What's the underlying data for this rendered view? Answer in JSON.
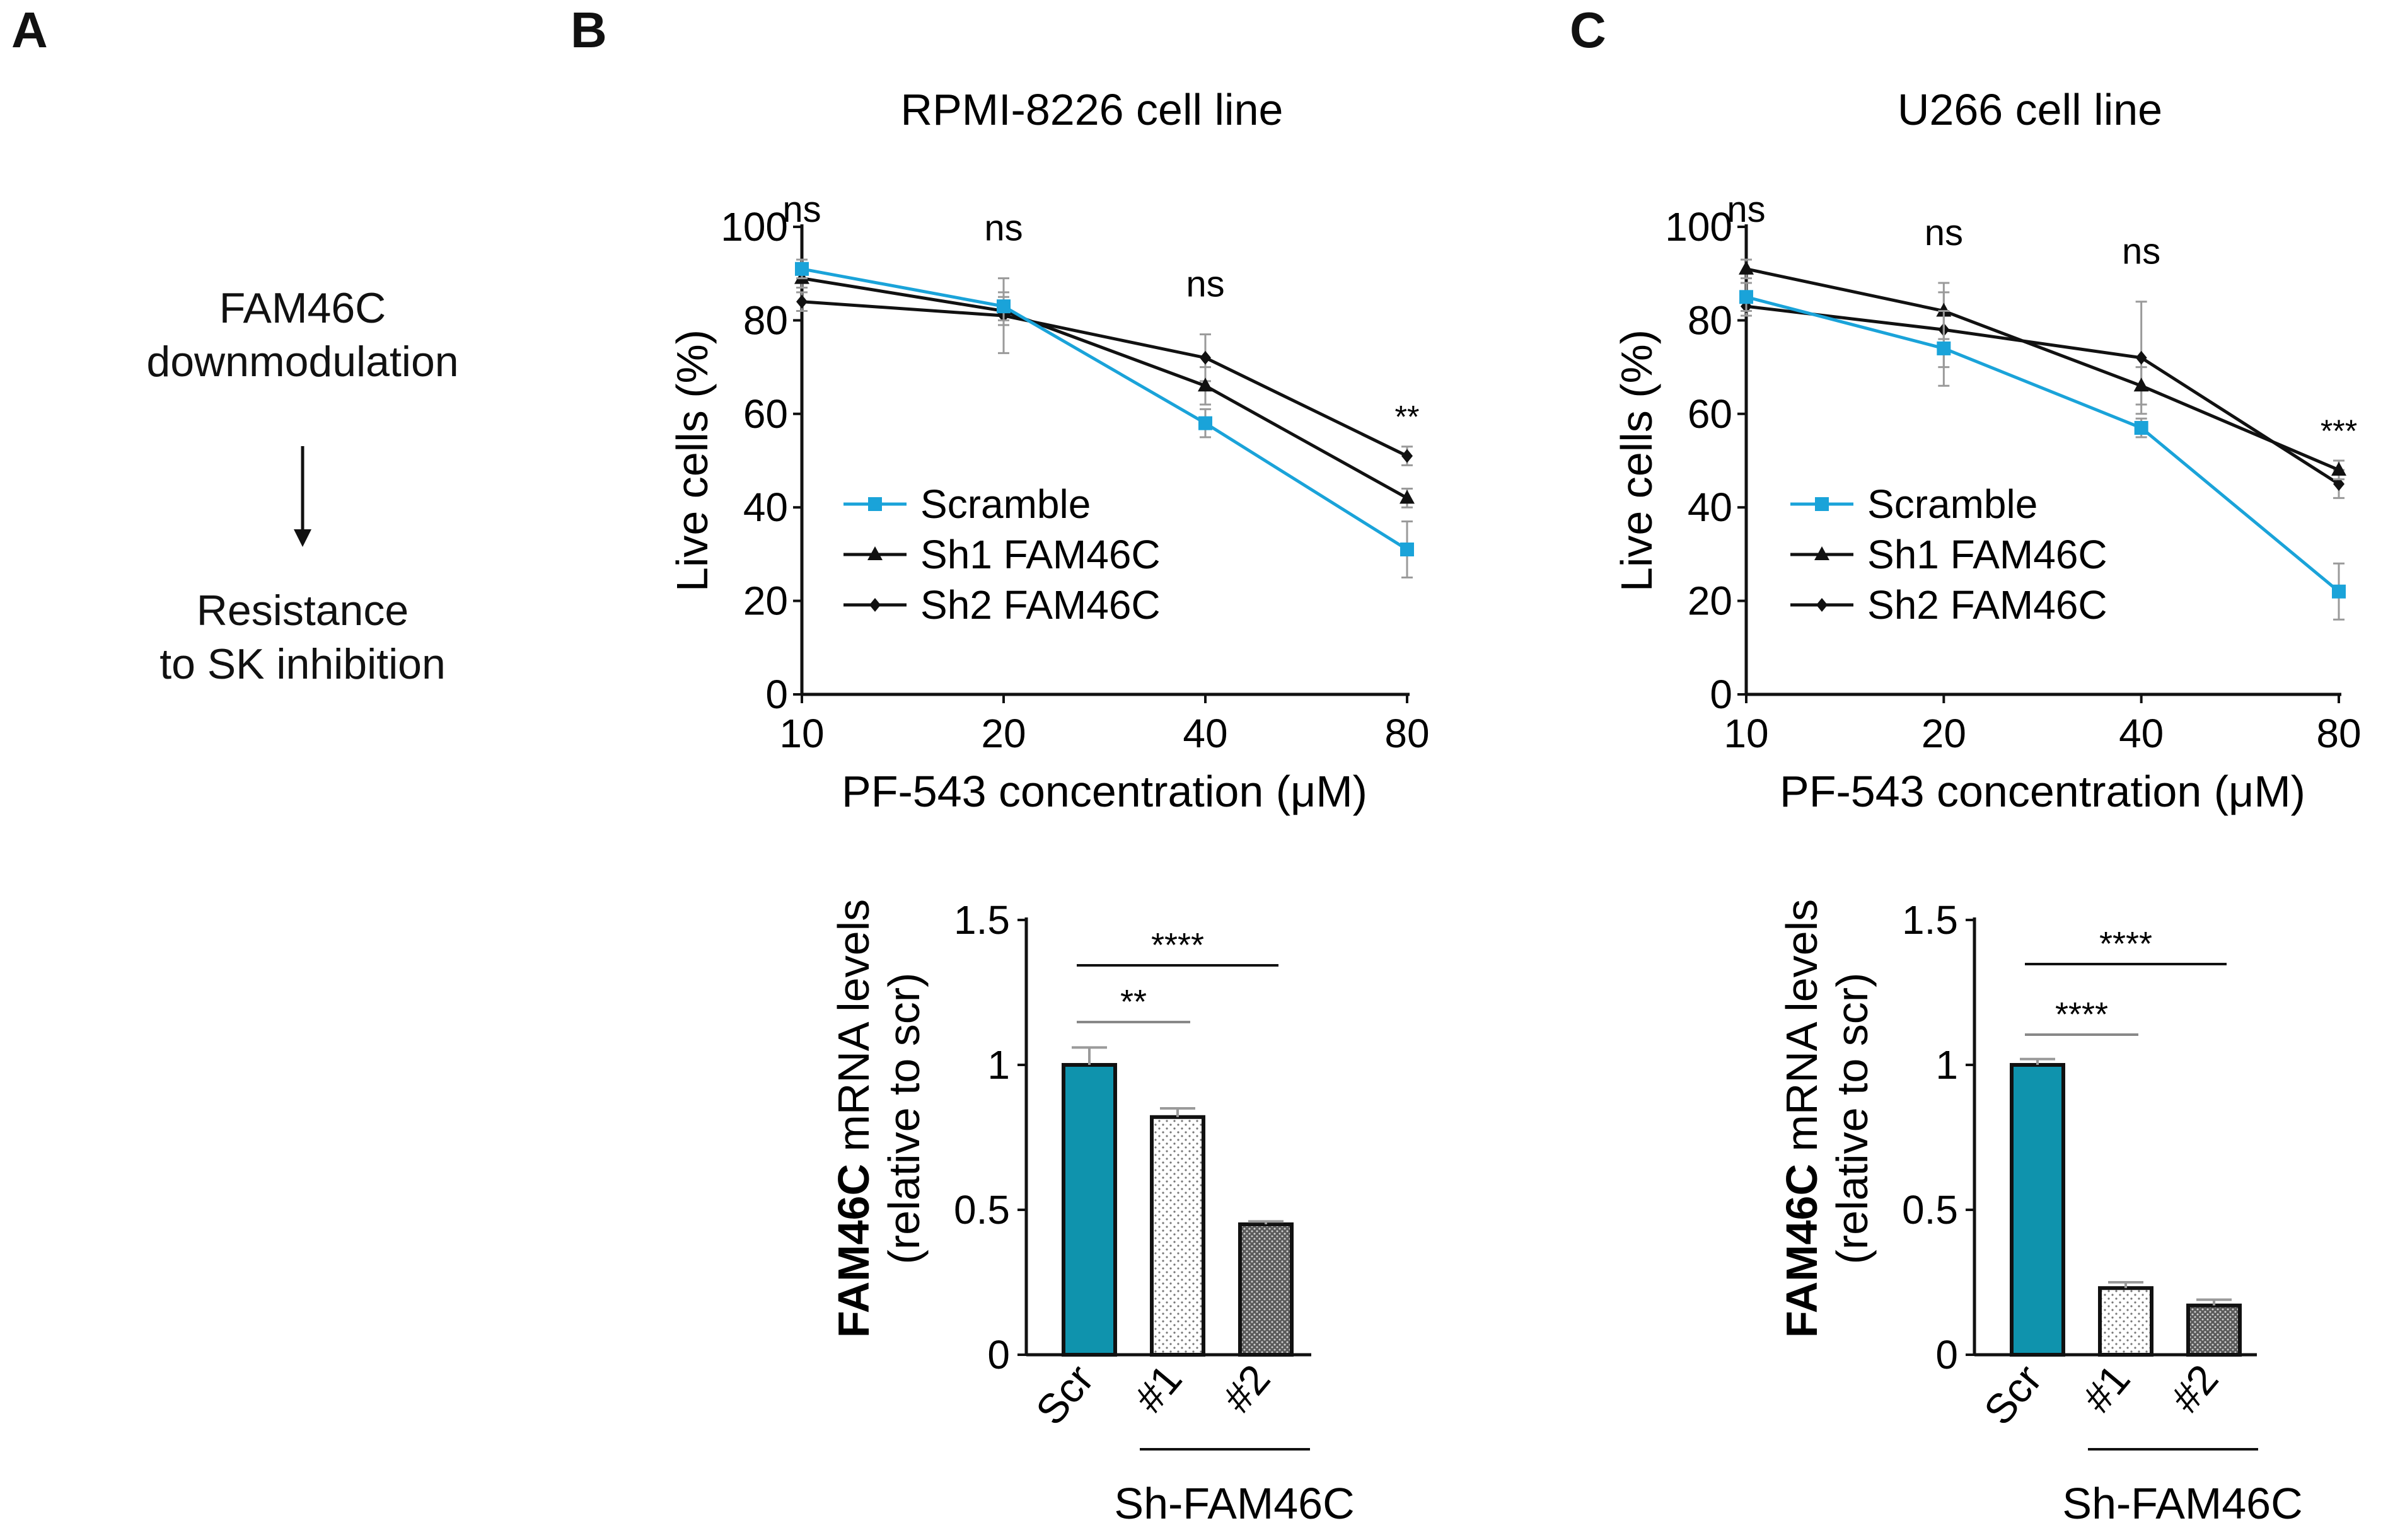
{
  "panels": {
    "a": "A",
    "b": "B",
    "c": "C"
  },
  "panel_a": {
    "line1": "FAM46C",
    "line2": "downmodulation",
    "line3": "Resistance",
    "line4": "to SK inhibition"
  },
  "colors": {
    "scramble": "#1aa3d9",
    "sh": "#111111",
    "scr_bar": "#0f93ad",
    "bar_edge": "#111111",
    "error": "#9a9a9a"
  },
  "chart_data": [
    {
      "type": "line",
      "title": "RPMI-8226 cell line",
      "xlabel": "PF-543 concentration (μM)",
      "ylabel": "Live cells (%)",
      "x": [
        10,
        20,
        40,
        80
      ],
      "x_scale": "log2",
      "xticks": [
        "10",
        "20",
        "40",
        "80"
      ],
      "ylim": [
        0,
        100
      ],
      "yticks": [
        "0",
        "20",
        "40",
        "60",
        "80",
        "100"
      ],
      "legend_position": "lower-left",
      "series": [
        {
          "name": "Scramble",
          "marker": "square",
          "color": "#1aa3d9",
          "values": [
            91,
            83,
            58,
            31
          ],
          "errors": [
            2,
            3,
            3,
            6
          ]
        },
        {
          "name": "Sh1 FAM46C",
          "marker": "triangle",
          "color": "#111111",
          "values": [
            89,
            82,
            66,
            42
          ],
          "errors": [
            2,
            3,
            4,
            2
          ]
        },
        {
          "name": "Sh2 FAM46C",
          "marker": "diamond",
          "color": "#111111",
          "values": [
            84,
            81,
            72,
            51
          ],
          "errors": [
            2,
            8,
            5,
            2
          ]
        }
      ],
      "annotations": [
        "ns",
        "ns",
        "ns",
        "**"
      ]
    },
    {
      "type": "line",
      "title": "U266 cell line",
      "xlabel": "PF-543 concentration (μM)",
      "ylabel": "Live cells (%)",
      "x": [
        10,
        20,
        40,
        80
      ],
      "x_scale": "log2",
      "xticks": [
        "10",
        "20",
        "40",
        "80"
      ],
      "ylim": [
        0,
        100
      ],
      "yticks": [
        "0",
        "20",
        "40",
        "60",
        "80",
        "100"
      ],
      "legend_position": "lower-left",
      "series": [
        {
          "name": "Scramble",
          "marker": "square",
          "color": "#1aa3d9",
          "values": [
            85,
            74,
            57,
            22
          ],
          "errors": [
            3,
            8,
            2,
            6
          ]
        },
        {
          "name": "Sh1 FAM46C",
          "marker": "triangle",
          "color": "#111111",
          "values": [
            91,
            82,
            66,
            48
          ],
          "errors": [
            2,
            6,
            4,
            2
          ]
        },
        {
          "name": "Sh2 FAM46C",
          "marker": "diamond",
          "color": "#111111",
          "values": [
            83,
            78,
            72,
            45
          ],
          "errors": [
            2,
            8,
            12,
            3
          ]
        }
      ],
      "annotations": [
        "ns",
        "ns",
        "ns",
        "***"
      ]
    },
    {
      "type": "bar",
      "ylabel_bold": "FAM46C",
      "ylabel_rest": " mRNA levels",
      "ylabel2": "(relative to scr)",
      "categories": [
        "Scr",
        "#1",
        "#2"
      ],
      "group_label": "Sh-FAM46C",
      "values": [
        1.0,
        0.82,
        0.45
      ],
      "errors": [
        0.06,
        0.03,
        0.01
      ],
      "patterns": [
        "solid",
        "dots-light",
        "dots-dense"
      ],
      "ylim": [
        0,
        1.5
      ],
      "yticks": [
        "0",
        "0.5",
        "1",
        "1.5"
      ],
      "significance": [
        {
          "from": 0,
          "to": 1,
          "label": "**"
        },
        {
          "from": 0,
          "to": 2,
          "label": "****"
        }
      ]
    },
    {
      "type": "bar",
      "ylabel_bold": "FAM46C",
      "ylabel_rest": " mRNA  levels",
      "ylabel2": "(relative to scr)",
      "categories": [
        "Scr",
        "#1",
        "#2"
      ],
      "group_label": "Sh-FAM46C",
      "values": [
        1.0,
        0.23,
        0.17
      ],
      "errors": [
        0.02,
        0.02,
        0.02
      ],
      "patterns": [
        "solid",
        "dots-light",
        "dots-dense"
      ],
      "ylim": [
        0,
        1.5
      ],
      "yticks": [
        "0",
        "0.5",
        "1",
        "1.5"
      ],
      "significance": [
        {
          "from": 0,
          "to": 1,
          "label": "****"
        },
        {
          "from": 0,
          "to": 2,
          "label": "****"
        }
      ]
    }
  ]
}
